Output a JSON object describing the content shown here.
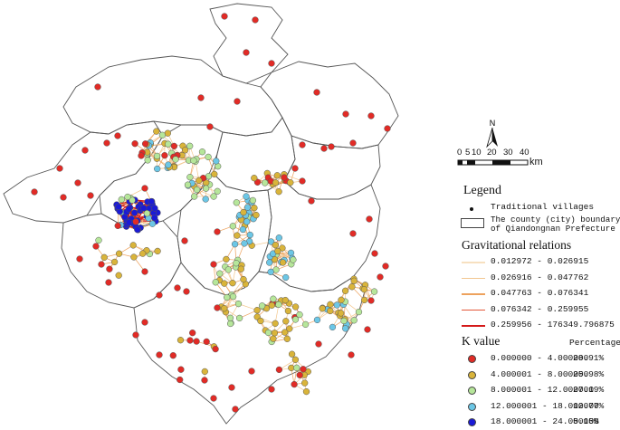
{
  "map": {
    "north_label": "N",
    "scale_ticks": [
      "0",
      "5",
      "10",
      "20",
      "30",
      "40"
    ],
    "scale_unit": "km",
    "village_colors": {
      "k1": "#e12b26",
      "k2": "#d9b43a",
      "k3": "#b6e69a",
      "k4": "#6cc7e6",
      "k5": "#1a1ad6"
    },
    "relation_color": "#e8a060",
    "relation_color_strong": "#e03030"
  },
  "legend": {
    "title": "Legend",
    "villages_label": "Traditional villages",
    "boundary_label": "The county (city) boundary of Qiandongnan Prefecture",
    "gravity_title": "Gravitational relations",
    "gravity_classes": [
      {
        "range": "0.012972 - 0.026915",
        "color": "#f7e0c0"
      },
      {
        "range": "0.026916 - 0.047762",
        "color": "#f2c690"
      },
      {
        "range": "0.047763 - 0.076341",
        "color": "#eda25d"
      },
      {
        "range": "0.076342 - 0.259955",
        "color": "#e4573a"
      },
      {
        "range": "0.259956 - 176349.796875",
        "color": "#d41a1a"
      }
    ],
    "k_title": "K value",
    "k_percentage_header": "Percentage",
    "k_classes": [
      {
        "range": "0.000000 - 4.000000",
        "percent": "28.91%",
        "color": "#e12b26"
      },
      {
        "range": "4.000001 - 8.000000",
        "percent": "25.98%",
        "color": "#d9b43a"
      },
      {
        "range": "8.000001 - 12.000000",
        "percent": "27.19%",
        "color": "#b6e69a"
      },
      {
        "range": "12.000001 - 18.000000",
        "percent": "12.77%",
        "color": "#6cc7e6"
      },
      {
        "range": "18.000001 - 24.000000",
        "percent": "5.15%",
        "color": "#1a1ad6"
      }
    ]
  }
}
